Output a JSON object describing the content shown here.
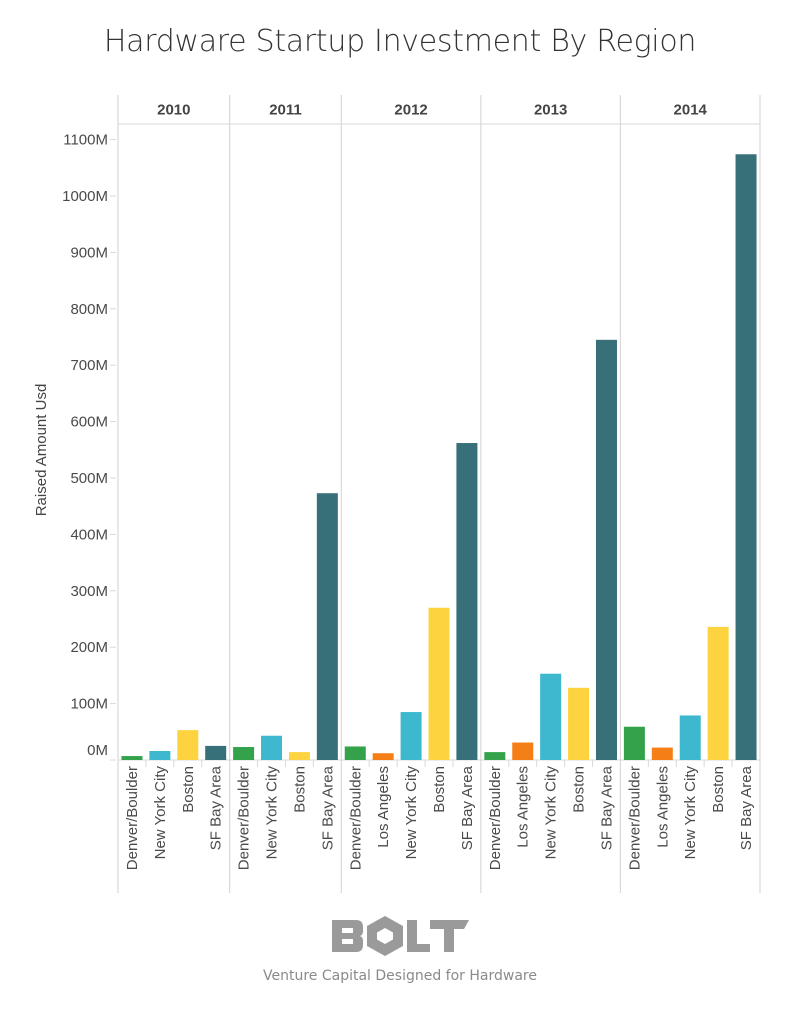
{
  "chart_data": {
    "type": "bar",
    "title": "Hardware Startup Investment By Region",
    "xlabel": "",
    "ylabel": "Raised Amount Usd",
    "ylim": [
      0,
      1100
    ],
    "y_unit": "M",
    "yticks": [
      0,
      100,
      200,
      300,
      400,
      500,
      600,
      700,
      800,
      900,
      1000,
      1100
    ],
    "ytick_labels": [
      "0M",
      "100M",
      "200M",
      "300M",
      "400M",
      "500M",
      "600M",
      "700M",
      "800M",
      "900M",
      "1000M",
      "1100M"
    ],
    "grid": false,
    "legend": "none",
    "colors": {
      "Denver/Boulder": "#34a24b",
      "Los Angeles": "#f57f17",
      "New York City": "#3db8cf",
      "Boston": "#fdd440",
      "SF Bay Area": "#377079"
    },
    "panels": [
      {
        "year": "2010",
        "categories": [
          "Denver/Boulder",
          "New York City",
          "Boston",
          "SF Bay Area"
        ],
        "values": [
          7,
          16,
          53,
          25
        ]
      },
      {
        "year": "2011",
        "categories": [
          "Denver/Boulder",
          "New York City",
          "Boston",
          "SF Bay Area"
        ],
        "values": [
          23,
          43,
          14,
          473
        ]
      },
      {
        "year": "2012",
        "categories": [
          "Denver/Boulder",
          "Los Angeles",
          "New York City",
          "Boston",
          "SF Bay Area"
        ],
        "values": [
          24,
          12,
          85,
          270,
          562
        ]
      },
      {
        "year": "2013",
        "categories": [
          "Denver/Boulder",
          "Los Angeles",
          "New York City",
          "Boston",
          "SF Bay Area"
        ],
        "values": [
          14,
          31,
          153,
          128,
          745
        ]
      },
      {
        "year": "2014",
        "categories": [
          "Denver/Boulder",
          "Los Angeles",
          "New York City",
          "Boston",
          "SF Bay Area"
        ],
        "values": [
          59,
          22,
          79,
          236,
          1074
        ]
      }
    ]
  },
  "footer": {
    "logo_text": "BOLT",
    "tagline": "Venture Capital Designed for Hardware"
  }
}
